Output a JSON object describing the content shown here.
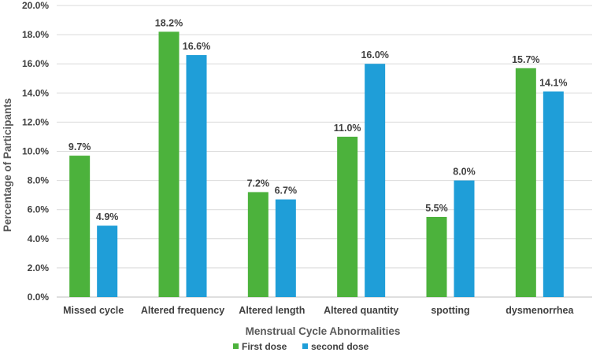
{
  "chart_data": {
    "type": "bar",
    "title": "",
    "xlabel": "Menstrual Cycle Abnormalities",
    "ylabel": "Percentage of Participants",
    "ylim": [
      0,
      20
    ],
    "ytick_step": 2,
    "grid": true,
    "legend_position": "bottom",
    "categories": [
      "Missed cycle",
      "Altered frequency",
      "Altered length",
      "Altered quantity",
      "spotting",
      "dysmenorrhea"
    ],
    "series": [
      {
        "name": "First dose",
        "color": "#4cb23c",
        "values": [
          9.7,
          18.2,
          7.2,
          11.0,
          5.5,
          15.7
        ]
      },
      {
        "name": "second dose",
        "color": "#1f9ed8",
        "values": [
          4.9,
          16.6,
          6.7,
          16.0,
          8.0,
          14.1
        ]
      }
    ]
  }
}
